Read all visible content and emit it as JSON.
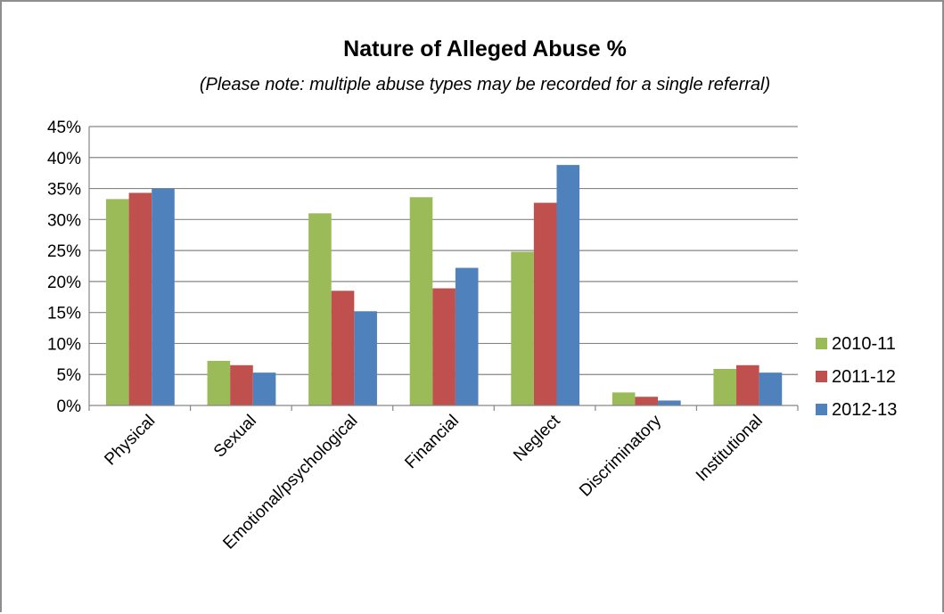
{
  "chart_data": {
    "type": "bar",
    "title": "Nature of Alleged Abuse %",
    "subtitle": "(Please note: multiple abuse types may be recorded for a single referral)",
    "xlabel": "",
    "ylabel": "",
    "categories": [
      "Physical",
      "Sexual",
      "Emotional/psychological",
      "Financial",
      "Neglect",
      "Discriminatory",
      "Institutional"
    ],
    "series": [
      {
        "name": "2010-11",
        "color": "#9bbb59",
        "values": [
          33.3,
          7.2,
          31.0,
          33.6,
          24.8,
          2.1,
          5.9
        ]
      },
      {
        "name": "2011-12",
        "color": "#c0504d",
        "values": [
          34.3,
          6.5,
          18.5,
          18.9,
          32.7,
          1.4,
          6.5
        ]
      },
      {
        "name": "2012-13",
        "color": "#4f81bd",
        "values": [
          35.0,
          5.3,
          15.2,
          22.2,
          38.8,
          0.8,
          5.3
        ]
      }
    ],
    "ylim": [
      0,
      45
    ],
    "yticks": [
      0,
      5,
      10,
      15,
      20,
      25,
      30,
      35,
      40,
      45
    ],
    "ytick_labels": [
      "0%",
      "5%",
      "10%",
      "15%",
      "20%",
      "25%",
      "30%",
      "35%",
      "40%",
      "45%"
    ],
    "grid": true,
    "legend_position": "right"
  }
}
